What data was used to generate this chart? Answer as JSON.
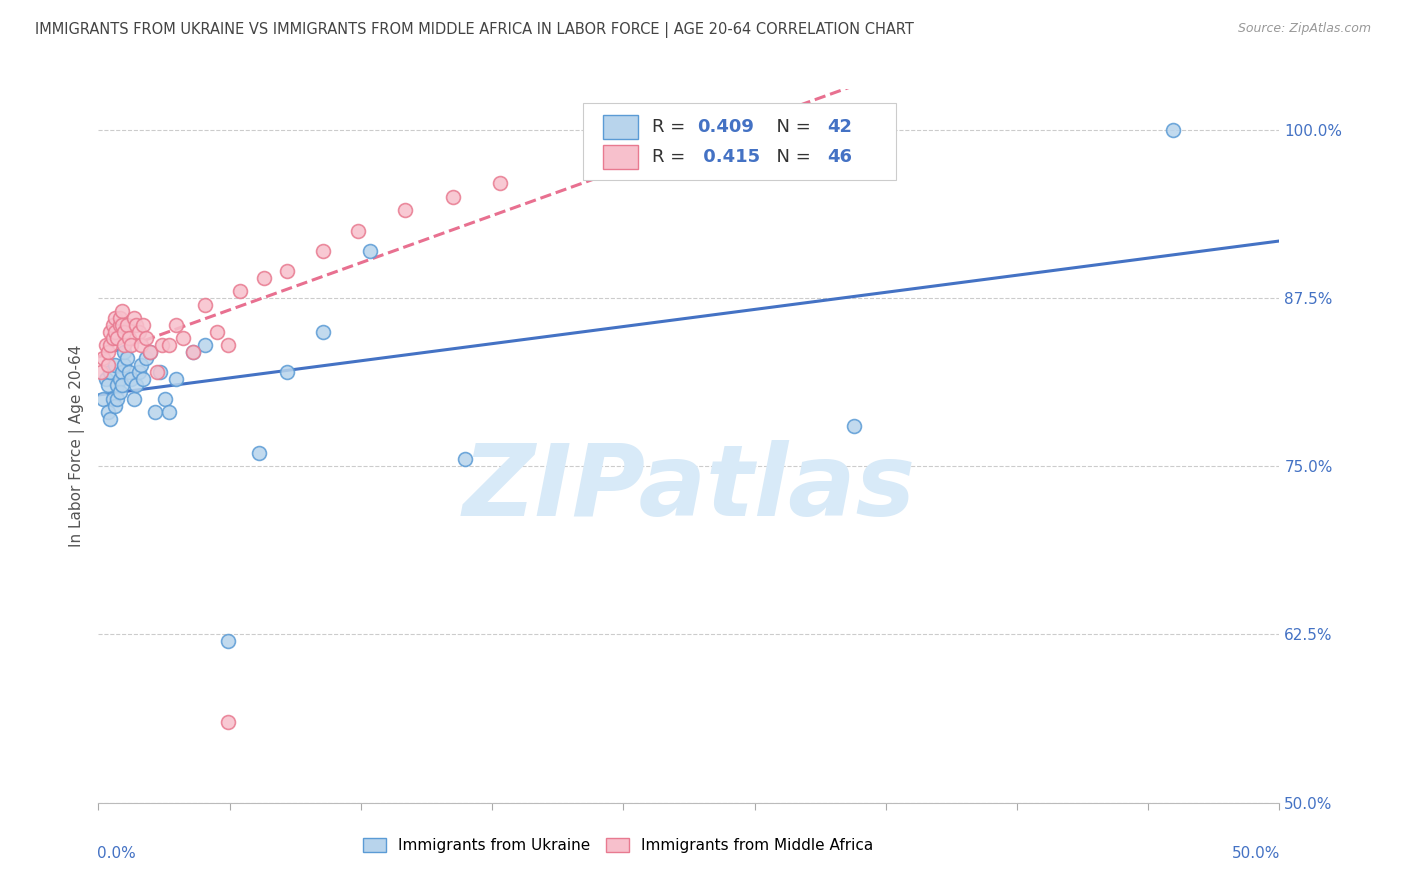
{
  "title": "IMMIGRANTS FROM UKRAINE VS IMMIGRANTS FROM MIDDLE AFRICA IN LABOR FORCE | AGE 20-64 CORRELATION CHART",
  "source": "Source: ZipAtlas.com",
  "ylabel": "In Labor Force | Age 20-64",
  "blue_R": 0.409,
  "blue_N": 42,
  "pink_R": 0.415,
  "pink_N": 46,
  "blue_dot_face": "#b8d4ec",
  "blue_dot_edge": "#5b9bd5",
  "pink_dot_face": "#f7c0cc",
  "pink_dot_edge": "#e87a90",
  "blue_line_color": "#4472c4",
  "pink_line_color": "#e87090",
  "axis_label_color": "#4472c4",
  "title_color": "#444444",
  "source_color": "#999999",
  "grid_color": "#cccccc",
  "watermark_color": "#d8eaf8",
  "xmin": 0.0,
  "xmax": 0.5,
  "ymin": 0.5,
  "ymax": 1.03,
  "yticks": [
    0.5,
    0.625,
    0.75,
    0.875,
    1.0
  ],
  "ytick_labels": [
    "50.0%",
    "62.5%",
    "75.0%",
    "87.5%",
    "100.0%"
  ],
  "ukraine_x": [
    0.002,
    0.003,
    0.004,
    0.004,
    0.005,
    0.005,
    0.006,
    0.007,
    0.007,
    0.008,
    0.008,
    0.009,
    0.009,
    0.01,
    0.01,
    0.011,
    0.011,
    0.012,
    0.013,
    0.014,
    0.015,
    0.016,
    0.017,
    0.018,
    0.019,
    0.02,
    0.022,
    0.024,
    0.026,
    0.028,
    0.03,
    0.033,
    0.04,
    0.045,
    0.055,
    0.068,
    0.08,
    0.095,
    0.115,
    0.155,
    0.32,
    0.455
  ],
  "ukraine_y": [
    0.8,
    0.815,
    0.79,
    0.81,
    0.785,
    0.82,
    0.8,
    0.825,
    0.795,
    0.81,
    0.8,
    0.815,
    0.805,
    0.82,
    0.81,
    0.825,
    0.835,
    0.83,
    0.82,
    0.815,
    0.8,
    0.81,
    0.82,
    0.825,
    0.815,
    0.83,
    0.835,
    0.79,
    0.82,
    0.8,
    0.79,
    0.815,
    0.835,
    0.84,
    0.62,
    0.76,
    0.82,
    0.85,
    0.91,
    0.755,
    0.78,
    1.0
  ],
  "africa_x": [
    0.001,
    0.002,
    0.003,
    0.004,
    0.004,
    0.005,
    0.005,
    0.006,
    0.006,
    0.007,
    0.007,
    0.008,
    0.009,
    0.009,
    0.01,
    0.01,
    0.011,
    0.011,
    0.012,
    0.013,
    0.014,
    0.015,
    0.016,
    0.017,
    0.018,
    0.019,
    0.02,
    0.022,
    0.025,
    0.027,
    0.03,
    0.033,
    0.036,
    0.04,
    0.045,
    0.05,
    0.055,
    0.06,
    0.07,
    0.08,
    0.095,
    0.11,
    0.13,
    0.15,
    0.17,
    0.055
  ],
  "africa_y": [
    0.82,
    0.83,
    0.84,
    0.825,
    0.835,
    0.84,
    0.85,
    0.845,
    0.855,
    0.86,
    0.85,
    0.845,
    0.855,
    0.86,
    0.865,
    0.855,
    0.85,
    0.84,
    0.855,
    0.845,
    0.84,
    0.86,
    0.855,
    0.85,
    0.84,
    0.855,
    0.845,
    0.835,
    0.82,
    0.84,
    0.84,
    0.855,
    0.845,
    0.835,
    0.87,
    0.85,
    0.84,
    0.88,
    0.89,
    0.895,
    0.91,
    0.925,
    0.94,
    0.95,
    0.96,
    0.56
  ]
}
